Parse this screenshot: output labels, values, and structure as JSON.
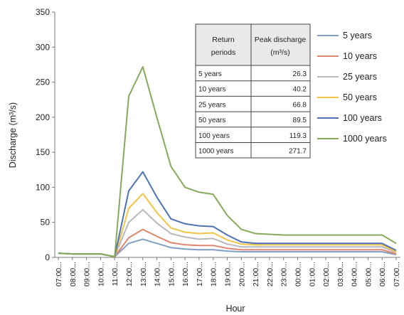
{
  "chart_data": {
    "type": "line",
    "xlabel": "Hour",
    "ylabel": "Discharge  (m³/s)",
    "ylim": [
      0,
      350
    ],
    "yticks": [
      "0",
      "50",
      "100",
      "150",
      "200",
      "250",
      "300",
      "350"
    ],
    "categories": [
      "07:00",
      "08:00",
      "09:00",
      "10:00",
      "11:00",
      "12:00",
      "13:00",
      "14:00",
      "15:00",
      "16:00",
      "17:00",
      "18:00",
      "19:00",
      "20:00",
      "21:00",
      "22:00",
      "23:00",
      "00:00",
      "01:00",
      "02:00",
      "03:00",
      "04:00",
      "05:00",
      "06:00",
      "07:00"
    ],
    "category_suffix": "...",
    "grid": false,
    "legend_position": "right",
    "series": [
      {
        "name": "5 years",
        "color": "#7f9fc6",
        "values": [
          6,
          5,
          5,
          5,
          1,
          20,
          26,
          20,
          14,
          12,
          11,
          11,
          9,
          8,
          8,
          8,
          8,
          8,
          8,
          8,
          8,
          8,
          8,
          8,
          4
        ]
      },
      {
        "name": "10 years",
        "color": "#e0856e",
        "values": [
          6,
          5,
          5,
          5,
          1,
          28,
          40,
          30,
          21,
          18,
          17,
          17,
          13,
          11,
          11,
          11,
          11,
          11,
          11,
          11,
          11,
          11,
          11,
          11,
          5
        ]
      },
      {
        "name": "25 years",
        "color": "#b7b7bf",
        "values": [
          6,
          5,
          5,
          5,
          1,
          50,
          68,
          49,
          34,
          29,
          26,
          27,
          19,
          15,
          15,
          15,
          15,
          15,
          15,
          15,
          15,
          15,
          15,
          15,
          7
        ]
      },
      {
        "name": "50 years",
        "color": "#f2c443",
        "values": [
          6,
          5,
          5,
          5,
          1,
          70,
          91,
          64,
          42,
          36,
          34,
          35,
          25,
          19,
          18,
          18,
          18,
          18,
          18,
          18,
          18,
          18,
          18,
          18,
          8
        ]
      },
      {
        "name": "100 years",
        "color": "#4e72b8",
        "values": [
          6,
          5,
          5,
          5,
          1,
          95,
          122,
          86,
          55,
          48,
          45,
          44,
          32,
          22,
          20,
          20,
          20,
          20,
          20,
          20,
          20,
          20,
          20,
          20,
          10
        ]
      },
      {
        "name": "1000 years",
        "color": "#85aa5c",
        "values": [
          6,
          5,
          5,
          5,
          1,
          230,
          272,
          200,
          130,
          100,
          93,
          90,
          60,
          40,
          34,
          33,
          32,
          32,
          32,
          32,
          32,
          32,
          32,
          32,
          20
        ]
      }
    ]
  },
  "table": {
    "header_left_line1": "Return",
    "header_left_line2": "periods",
    "header_right_line1": "Peak discharge",
    "header_right_line2": "(m³/s)",
    "rows": [
      {
        "period": "5 years",
        "peak": "26.3"
      },
      {
        "period": "10 years",
        "peak": "40.2"
      },
      {
        "period": "25 years",
        "peak": "66.8"
      },
      {
        "period": "50 years",
        "peak": "89.5"
      },
      {
        "period": "100 years",
        "peak": "119.3"
      },
      {
        "period": "1000 years",
        "peak": "271.7"
      }
    ]
  }
}
